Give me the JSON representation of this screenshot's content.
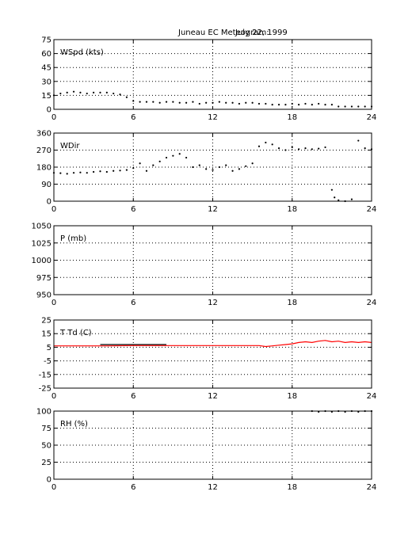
{
  "figure": {
    "title": "Juneau EC Meteogram:",
    "date": "July 22, 1999"
  },
  "chart_data": [
    {
      "type": "scatter",
      "label": "WSpd (kts)",
      "xlim": [
        0,
        24
      ],
      "ylim": [
        0,
        75
      ],
      "xticks": [
        0,
        6,
        12,
        18,
        24
      ],
      "yticks": [
        0,
        15,
        30,
        45,
        60,
        75
      ],
      "grid": true,
      "series": [
        {
          "color": "#000000",
          "marker": "dot",
          "x": [
            0,
            0.5,
            1,
            1.5,
            2,
            2.5,
            3,
            3.5,
            4,
            4.5,
            5,
            5.5,
            6,
            6.5,
            7,
            7.5,
            8,
            8.5,
            9,
            9.5,
            10,
            10.5,
            11,
            11.5,
            12,
            12.5,
            13,
            13.5,
            14,
            14.5,
            15,
            15.5,
            16,
            16.5,
            17,
            17.5,
            18,
            18.5,
            19,
            19.5,
            20,
            20.5,
            21,
            21.5,
            22,
            22.5,
            23,
            23.5,
            24
          ],
          "y": [
            15,
            17,
            18,
            19,
            18,
            17,
            18,
            18,
            18,
            17,
            16,
            13,
            9,
            8,
            8,
            8,
            7,
            8,
            8,
            7,
            7,
            8,
            6,
            7,
            7,
            8,
            7,
            7,
            6,
            7,
            7,
            6,
            6,
            5,
            5,
            5,
            6,
            5,
            6,
            5,
            6,
            5,
            5,
            3,
            3,
            3,
            3,
            3,
            3
          ]
        }
      ]
    },
    {
      "type": "scatter",
      "label": "WDir",
      "xlim": [
        0,
        24
      ],
      "ylim": [
        0,
        360
      ],
      "xticks": [
        0,
        6,
        12,
        18,
        24
      ],
      "yticks": [
        0,
        90,
        180,
        270,
        360
      ],
      "grid": true,
      "series": [
        {
          "color": "#000000",
          "marker": "dot",
          "x": [
            0,
            0.5,
            1,
            1.5,
            2,
            2.5,
            3,
            3.5,
            4,
            4.5,
            5,
            5.5,
            6,
            6.5,
            7,
            7.5,
            8,
            8.5,
            9,
            9.5,
            10,
            10.5,
            11,
            11.5,
            12,
            12.5,
            13,
            13.5,
            14,
            14.5,
            15,
            15.5,
            16,
            16.5,
            17,
            17.5,
            18,
            18.5,
            19,
            19.5,
            20,
            20.5,
            21,
            21.2,
            21.5,
            22,
            22.5,
            23,
            23.5,
            24
          ],
          "y": [
            150,
            148,
            145,
            150,
            152,
            150,
            155,
            158,
            155,
            160,
            162,
            165,
            175,
            200,
            160,
            190,
            210,
            230,
            240,
            250,
            230,
            180,
            190,
            170,
            165,
            180,
            190,
            160,
            170,
            185,
            200,
            290,
            310,
            300,
            280,
            270,
            285,
            275,
            280,
            275,
            278,
            285,
            60,
            20,
            5,
            0,
            10,
            320,
            280,
            275
          ]
        }
      ]
    },
    {
      "type": "line",
      "label": "P (mb)",
      "xlim": [
        0,
        24
      ],
      "ylim": [
        950,
        1050
      ],
      "xticks": [
        0,
        6,
        12,
        18,
        24
      ],
      "yticks": [
        950,
        975,
        1000,
        1025,
        1050
      ],
      "grid": true,
      "series": []
    },
    {
      "type": "line",
      "label": "T Td (C)",
      "xlim": [
        0,
        24
      ],
      "ylim": [
        -25,
        25
      ],
      "xticks": [
        0,
        6,
        12,
        18,
        24
      ],
      "yticks": [
        -25,
        -15,
        -5,
        5,
        15,
        25
      ],
      "grid": true,
      "series": [
        {
          "color": "#000000",
          "x": [
            3.5,
            5,
            6,
            7,
            8.5
          ],
          "y": [
            7,
            7,
            7,
            7,
            7
          ]
        },
        {
          "color": "#ff0000",
          "x": [
            0,
            2,
            4,
            6,
            8,
            10,
            12,
            14,
            15.5,
            16,
            16.5,
            17,
            17.5,
            18,
            18.5,
            19,
            19.5,
            20,
            20.5,
            21,
            21.5,
            22,
            22.5,
            23,
            23.5,
            24
          ],
          "y": [
            6,
            6,
            6,
            6.2,
            6.2,
            6.2,
            6.2,
            6.2,
            6.2,
            5.5,
            6,
            6.5,
            7,
            7.5,
            8.5,
            9,
            8.5,
            9.5,
            10,
            9,
            9.5,
            8.5,
            9,
            8.5,
            9,
            8.5
          ]
        }
      ]
    },
    {
      "type": "scatter",
      "label": "RH (%)",
      "xlim": [
        0,
        24
      ],
      "ylim": [
        0,
        100
      ],
      "xticks": [
        0,
        6,
        12,
        18,
        24
      ],
      "yticks": [
        0,
        25,
        50,
        75,
        100
      ],
      "grid": true,
      "series": [
        {
          "color": "#000000",
          "marker": "dot",
          "x": [
            19.5,
            20,
            20.5,
            21,
            21.5,
            22,
            22.5,
            23,
            23.5,
            24
          ],
          "y": [
            100,
            99,
            100,
            99,
            100,
            99,
            100,
            99,
            100,
            100
          ]
        }
      ]
    }
  ]
}
